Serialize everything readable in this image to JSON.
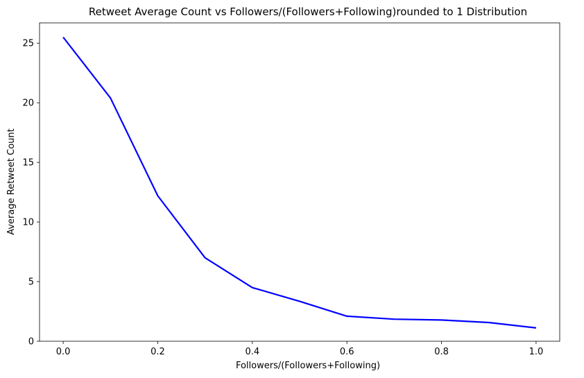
{
  "chart_data": {
    "type": "line",
    "title": "Retweet Average Count vs Followers/(Followers+Following)rounded to 1 Distribution",
    "xlabel": "Followers/(Followers+Following)",
    "ylabel": "Average Retweet Count",
    "x": [
      0.0,
      0.1,
      0.2,
      0.3,
      0.4,
      0.5,
      0.6,
      0.7,
      0.8,
      0.9,
      1.0
    ],
    "series": [
      {
        "values": [
          25.5,
          20.4,
          12.2,
          7.0,
          4.5,
          3.35,
          2.1,
          1.85,
          1.78,
          1.57,
          1.12
        ],
        "color": "#0000ff"
      }
    ],
    "xlim": [
      -0.05,
      1.05
    ],
    "ylim": [
      0,
      26.7
    ],
    "xticks": [
      "0.0",
      "0.2",
      "0.4",
      "0.6",
      "0.8",
      "1.0"
    ],
    "yticks": [
      "0",
      "5",
      "10",
      "15",
      "20",
      "25"
    ],
    "grid": false,
    "legend": "none"
  }
}
